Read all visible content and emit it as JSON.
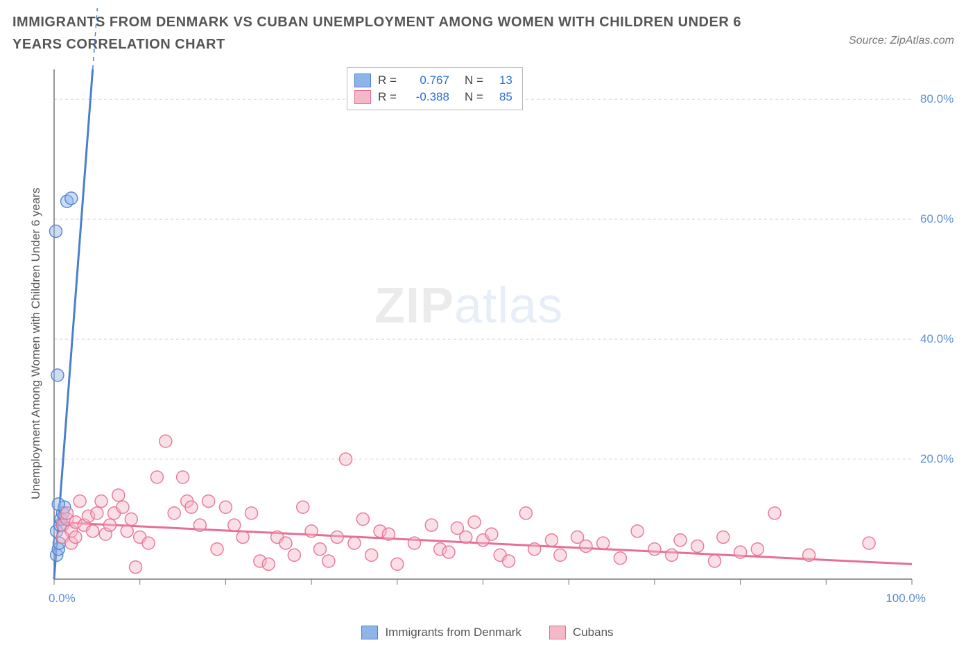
{
  "title": "IMMIGRANTS FROM DENMARK VS CUBAN UNEMPLOYMENT AMONG WOMEN WITH CHILDREN UNDER 6 YEARS CORRELATION CHART",
  "source": "Source: ZipAtlas.com",
  "y_axis_label": "Unemployment Among Women with Children Under 6 years",
  "watermark": {
    "part1": "ZIP",
    "part2": "atlas"
  },
  "chart": {
    "type": "scatter",
    "background_color": "#ffffff",
    "grid_color": "#d8d8d8",
    "axis_color": "#777777",
    "tick_label_color": "#5b8fd6",
    "xlim": [
      0,
      100
    ],
    "ylim": [
      0,
      85
    ],
    "x_ticks": [
      0,
      10,
      20,
      30,
      40,
      50,
      60,
      70,
      80,
      90,
      100
    ],
    "x_tick_labels": {
      "0": "0.0%",
      "100": "100.0%"
    },
    "y_ticks": [
      20,
      40,
      60,
      80
    ],
    "y_tick_labels": {
      "20": "20.0%",
      "40": "40.0%",
      "60": "60.0%",
      "80": "80.0%"
    },
    "marker_radius": 9,
    "marker_opacity": 0.45,
    "marker_stroke_opacity": 0.9,
    "trend_line_width": 3,
    "series": [
      {
        "name": "Immigrants from Denmark",
        "fill_color": "#8fb4e8",
        "stroke_color": "#4a7fd0",
        "r_value": "0.767",
        "n_value": "13",
        "trend": {
          "x1": 0,
          "y1": 0,
          "x2": 4.5,
          "y2": 85,
          "dash_extend": true
        },
        "points": [
          [
            0.3,
            4
          ],
          [
            0.5,
            5
          ],
          [
            0.6,
            6
          ],
          [
            0.3,
            8
          ],
          [
            0.7,
            9
          ],
          [
            0.8,
            10
          ],
          [
            1.0,
            11
          ],
          [
            1.2,
            12
          ],
          [
            0.5,
            12.5
          ],
          [
            0.4,
            34
          ],
          [
            0.2,
            58
          ],
          [
            1.5,
            63
          ],
          [
            2.0,
            63.5
          ]
        ]
      },
      {
        "name": "Cubans",
        "fill_color": "#f5b8c8",
        "stroke_color": "#e76f94",
        "r_value": "-0.388",
        "n_value": "85",
        "trend": {
          "x1": 0,
          "y1": 9.5,
          "x2": 100,
          "y2": 2.5,
          "dash_extend": false
        },
        "points": [
          [
            1,
            9
          ],
          [
            1.5,
            10
          ],
          [
            2,
            8
          ],
          [
            2.5,
            9.5
          ],
          [
            1,
            7
          ],
          [
            2,
            6
          ],
          [
            1.5,
            11
          ],
          [
            2.5,
            7
          ],
          [
            3,
            13
          ],
          [
            3.5,
            9
          ],
          [
            4,
            10.5
          ],
          [
            4.5,
            8
          ],
          [
            5,
            11
          ],
          [
            5.5,
            13
          ],
          [
            6,
            7.5
          ],
          [
            6.5,
            9
          ],
          [
            7,
            11
          ],
          [
            7.5,
            14
          ],
          [
            8,
            12
          ],
          [
            8.5,
            8
          ],
          [
            9,
            10
          ],
          [
            9.5,
            2
          ],
          [
            10,
            7
          ],
          [
            11,
            6
          ],
          [
            12,
            17
          ],
          [
            13,
            23
          ],
          [
            14,
            11
          ],
          [
            15,
            17
          ],
          [
            15.5,
            13
          ],
          [
            16,
            12
          ],
          [
            17,
            9
          ],
          [
            18,
            13
          ],
          [
            19,
            5
          ],
          [
            20,
            12
          ],
          [
            21,
            9
          ],
          [
            22,
            7
          ],
          [
            23,
            11
          ],
          [
            24,
            3
          ],
          [
            25,
            2.5
          ],
          [
            26,
            7
          ],
          [
            27,
            6
          ],
          [
            28,
            4
          ],
          [
            29,
            12
          ],
          [
            30,
            8
          ],
          [
            31,
            5
          ],
          [
            32,
            3
          ],
          [
            33,
            7
          ],
          [
            34,
            20
          ],
          [
            35,
            6
          ],
          [
            36,
            10
          ],
          [
            37,
            4
          ],
          [
            38,
            8
          ],
          [
            39,
            7.5
          ],
          [
            40,
            2.5
          ],
          [
            42,
            6
          ],
          [
            44,
            9
          ],
          [
            45,
            5
          ],
          [
            46,
            4.5
          ],
          [
            47,
            8.5
          ],
          [
            48,
            7
          ],
          [
            49,
            9.5
          ],
          [
            50,
            6.5
          ],
          [
            51,
            7.5
          ],
          [
            52,
            4
          ],
          [
            53,
            3
          ],
          [
            55,
            11
          ],
          [
            56,
            5
          ],
          [
            58,
            6.5
          ],
          [
            59,
            4
          ],
          [
            61,
            7
          ],
          [
            62,
            5.5
          ],
          [
            64,
            6
          ],
          [
            66,
            3.5
          ],
          [
            68,
            8
          ],
          [
            70,
            5
          ],
          [
            72,
            4
          ],
          [
            73,
            6.5
          ],
          [
            75,
            5.5
          ],
          [
            77,
            3
          ],
          [
            78,
            7
          ],
          [
            80,
            4.5
          ],
          [
            82,
            5
          ],
          [
            84,
            11
          ],
          [
            88,
            4
          ],
          [
            95,
            6
          ]
        ]
      }
    ]
  },
  "legend_bottom": [
    {
      "label": "Immigrants from Denmark",
      "fill": "#8fb4e8",
      "stroke": "#4a7fd0"
    },
    {
      "label": "Cubans",
      "fill": "#f5b8c8",
      "stroke": "#e76f94"
    }
  ]
}
